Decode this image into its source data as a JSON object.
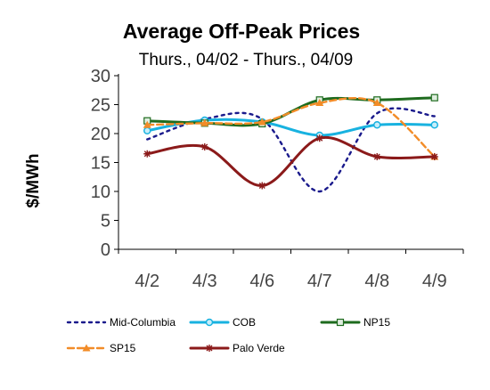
{
  "chart_data": {
    "type": "line",
    "title": "Average Off-Peak Prices",
    "subtitle": "Thurs., 04/02 - Thurs., 04/09",
    "ylabel": "$/MWh",
    "xlabel": "",
    "categories": [
      "4/2",
      "4/3",
      "4/6",
      "4/7",
      "4/8",
      "4/9"
    ],
    "ylim": [
      0,
      30
    ],
    "yticks": [
      0,
      5,
      10,
      15,
      20,
      25,
      30
    ],
    "grid": false,
    "legend_position": "bottom",
    "series": [
      {
        "name": "Mid-Columbia",
        "values": [
          19.0,
          22.5,
          22.5,
          10.0,
          23.5,
          23.0
        ],
        "color": "#1a1a8c",
        "style": "dotted",
        "marker": "none"
      },
      {
        "name": "COB",
        "values": [
          20.5,
          22.3,
          22.0,
          19.7,
          21.5,
          21.5
        ],
        "color": "#18b2e0",
        "style": "solid",
        "marker": "circle"
      },
      {
        "name": "NP15",
        "values": [
          22.2,
          21.8,
          21.7,
          25.8,
          25.8,
          26.2
        ],
        "color": "#1e6b1e",
        "style": "solid",
        "marker": "square"
      },
      {
        "name": "SP15",
        "values": [
          21.5,
          21.8,
          22.0,
          25.3,
          25.3,
          16.0
        ],
        "color": "#f28c28",
        "style": "dashed",
        "marker": "triangle"
      },
      {
        "name": "Palo Verde",
        "values": [
          16.5,
          17.7,
          11.0,
          19.2,
          16.0,
          16.0
        ],
        "color": "#8b1a1a",
        "style": "solid",
        "marker": "star"
      }
    ]
  }
}
